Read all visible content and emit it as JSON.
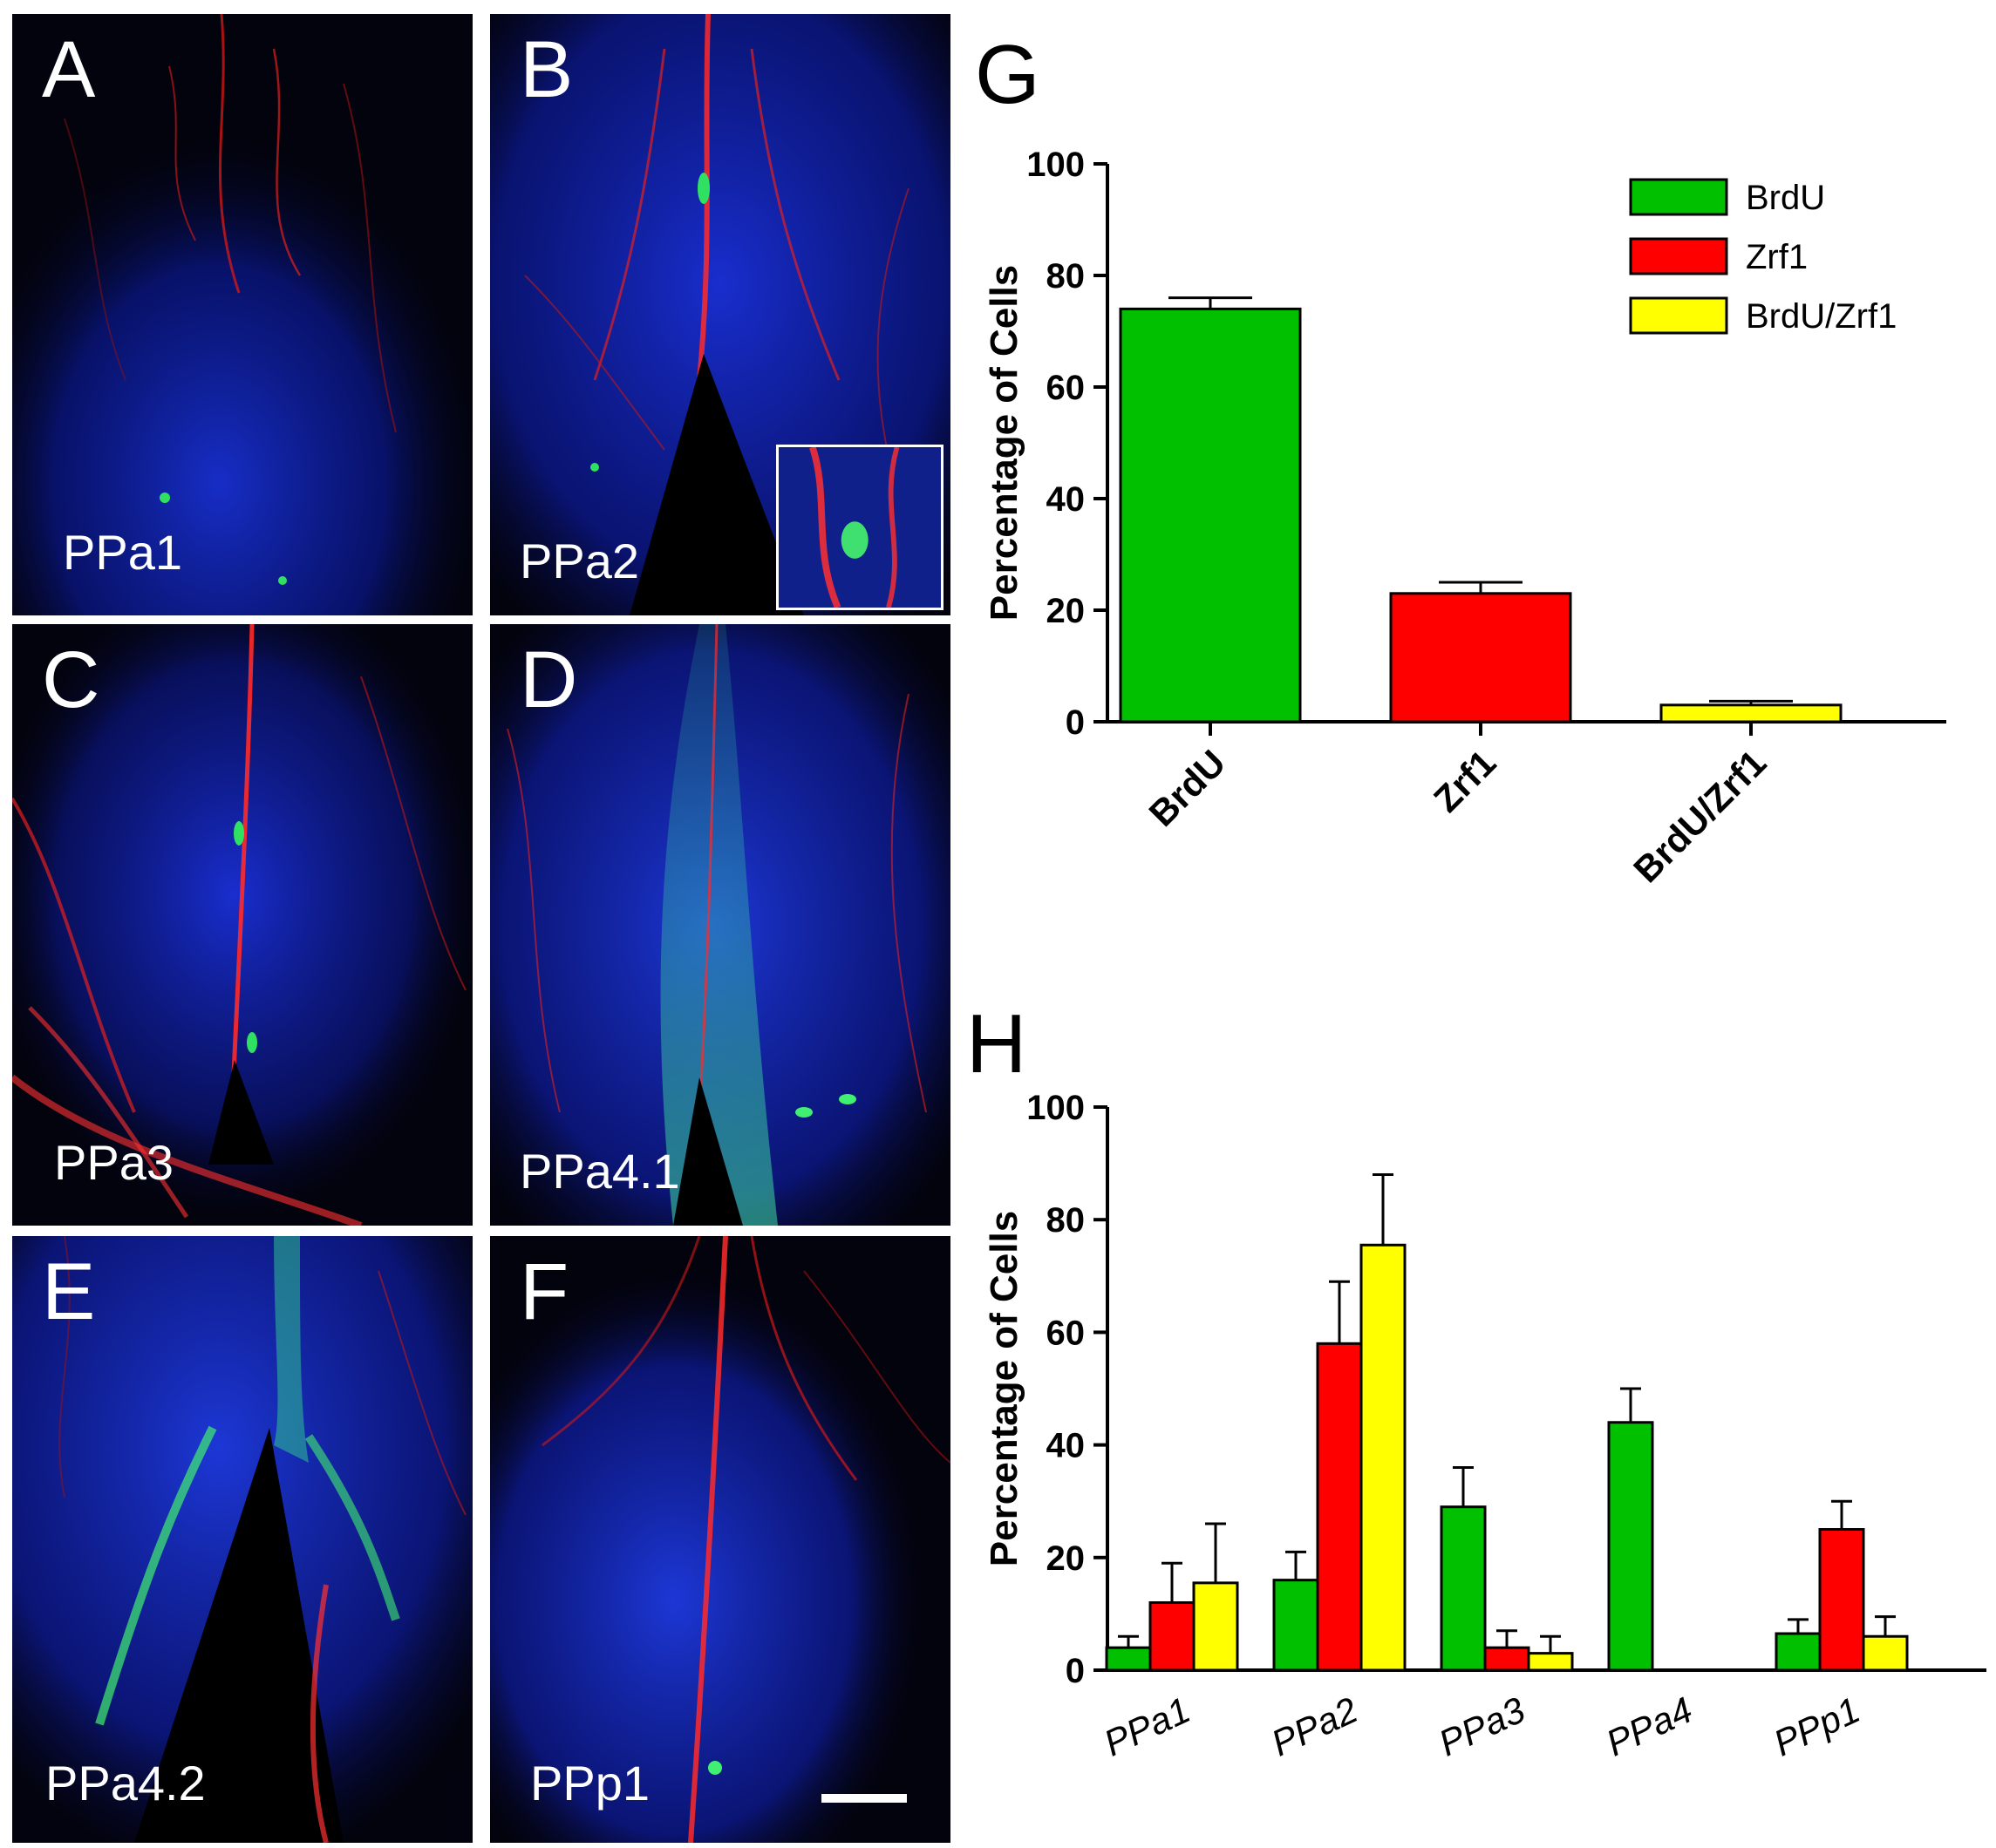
{
  "panels": [
    {
      "letter": "A",
      "region": "PPa1"
    },
    {
      "letter": "B",
      "region": "PPa2"
    },
    {
      "letter": "C",
      "region": "PPa3"
    },
    {
      "letter": "D",
      "region": "PPa4.1"
    },
    {
      "letter": "E",
      "region": "PPa4.2"
    },
    {
      "letter": "F",
      "region": "PPp1"
    }
  ],
  "colors": {
    "brdu": "#00c000",
    "zrf1": "#ff0000",
    "brdu_zrf1": "#ffff00"
  },
  "chart_data": [
    {
      "panel": "G",
      "type": "bar",
      "title": "",
      "xlabel": "",
      "ylabel": "Percentage of Cells",
      "ylim": [
        0,
        100
      ],
      "yticks": [
        0,
        20,
        40,
        60,
        80,
        100
      ],
      "categories": [
        "BrdU",
        "Zrf1",
        "BrdU/Zrf1"
      ],
      "values": [
        74,
        23,
        3
      ],
      "errors": [
        2,
        2,
        0.7
      ],
      "legend": {
        "placement": "top-right",
        "entries": [
          "BrdU",
          "Zrf1",
          "BrdU/Zrf1"
        ]
      }
    },
    {
      "panel": "H",
      "type": "bar",
      "title": "",
      "xlabel": "",
      "ylabel": "Percentage of  Cells",
      "ylim": [
        0,
        100
      ],
      "yticks": [
        0,
        20,
        40,
        60,
        80,
        100
      ],
      "categories": [
        "PPa1",
        "PPa2",
        "PPa3",
        "PPa4",
        "PPp1"
      ],
      "series": [
        {
          "values": [
            4,
            16,
            29,
            44,
            6.5
          ],
          "errors": [
            2,
            5,
            7,
            6,
            2.5
          ]
        },
        {
          "values": [
            12,
            58,
            4,
            0,
            25
          ],
          "errors": [
            7,
            11,
            3,
            0,
            5
          ]
        },
        {
          "values": [
            15.5,
            75.5,
            3,
            0,
            6
          ],
          "errors": [
            10.5,
            12.5,
            3,
            0,
            3.5
          ]
        }
      ]
    }
  ]
}
